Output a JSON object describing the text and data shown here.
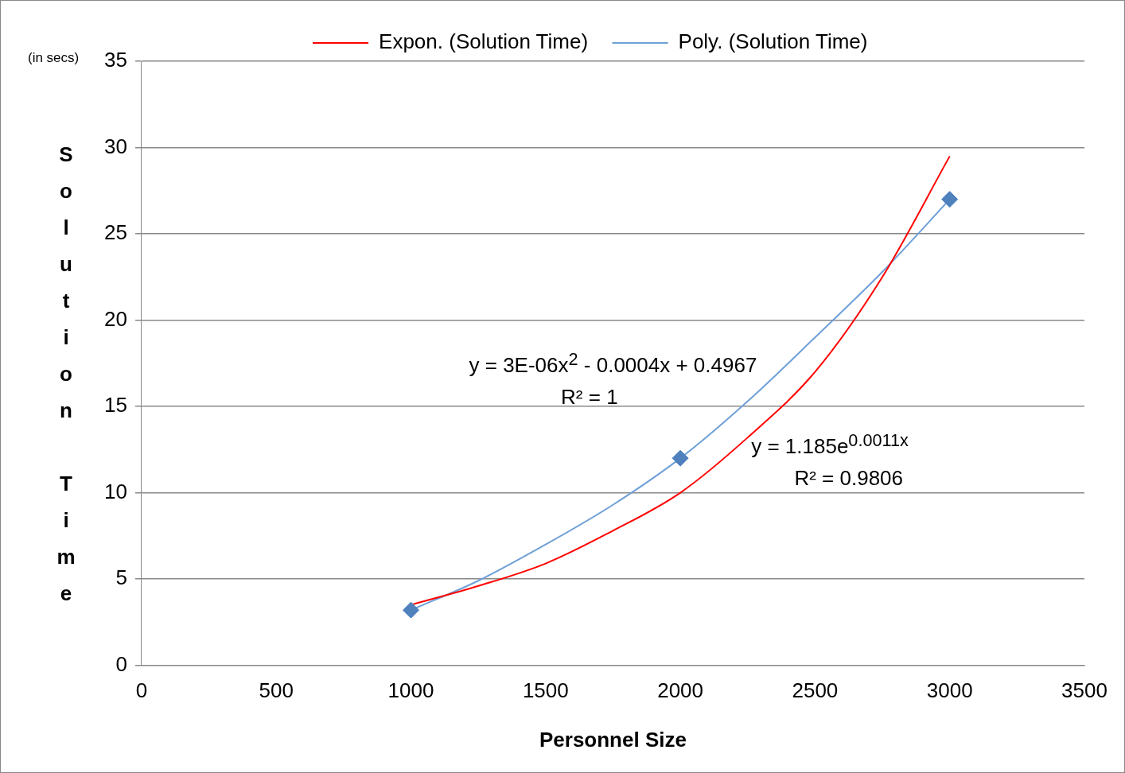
{
  "chart_data": {
    "type": "scatter",
    "xlabel": "Personnel Size",
    "ylabel": "Solution Time",
    "xlim": [
      0,
      3500
    ],
    "xticks": [
      0,
      500,
      1000,
      1500,
      2000,
      2500,
      3000,
      3500
    ],
    "ylim": [
      0,
      35
    ],
    "yticks": [
      0,
      5,
      10,
      15,
      20,
      25,
      30,
      35
    ],
    "grid": "y",
    "legend": "top",
    "marker": "diamond",
    "series": [
      {
        "color": "#4f81bd",
        "x": [
          1000,
          2000,
          3000
        ],
        "values": [
          3.2,
          12,
          27
        ]
      },
      {
        "type": "line",
        "name": "Expon. (Solution Time)",
        "color": "#ff0000",
        "marker": "none",
        "x": [
          1000,
          1250,
          1500,
          1750,
          2000,
          2250,
          2500,
          2750,
          3000
        ],
        "values": [
          3.5,
          4.6,
          5.9,
          7.8,
          10,
          13.2,
          17,
          22.5,
          29.5
        ]
      },
      {
        "type": "line",
        "name": "Poly. (Solution Time)",
        "color": "#6fa0d8",
        "marker": "none",
        "x": [
          1000,
          1250,
          1500,
          1750,
          2000,
          2250,
          2500,
          2750,
          3000
        ],
        "values": [
          3.2,
          4.9,
          7,
          9.3,
          12,
          15.3,
          19,
          22.8,
          27
        ]
      }
    ],
    "annotations": [
      "(in secs)",
      "y = 3E-06x$^{2}$ - 0.0004x + 0.4967",
      "R² = 1",
      "y = 1.185e$^{0.0011x}$",
      "R² = 0.9806"
    ]
  }
}
